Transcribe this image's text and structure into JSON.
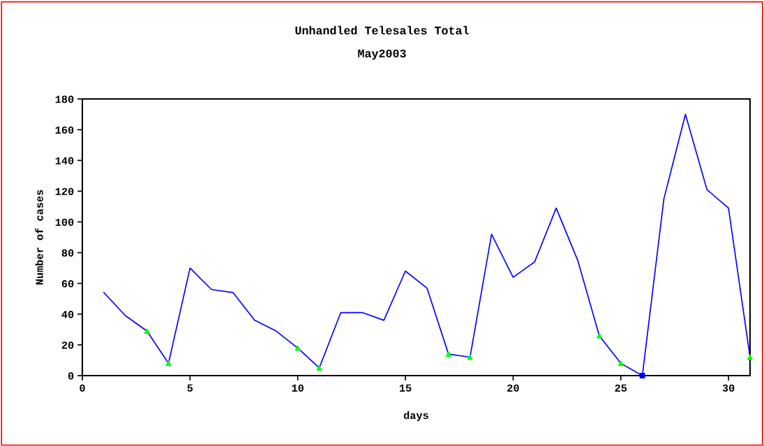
{
  "chart_data": {
    "type": "line",
    "title": "Unhandled Telesales Total",
    "subtitle": "May2003",
    "xlabel": "days",
    "ylabel": "Number of cases",
    "xlim": [
      0,
      31
    ],
    "xticks": [
      0,
      5,
      10,
      15,
      20,
      25,
      30
    ],
    "ylim": [
      0,
      180
    ],
    "yticks": [
      0,
      20,
      40,
      60,
      80,
      100,
      120,
      140,
      160,
      180
    ],
    "grid": false,
    "legend": false,
    "series": [
      {
        "color": "#0000ff",
        "marker": "none",
        "line_style": "solid",
        "x": [
          1,
          2,
          3,
          4,
          5,
          6,
          7,
          8,
          9,
          10,
          11,
          12,
          13,
          14,
          15,
          16,
          17,
          18,
          19,
          20,
          21,
          22,
          23,
          24,
          25,
          26,
          27,
          28,
          29,
          30,
          31
        ],
        "values": [
          54,
          39,
          29,
          8,
          70,
          56,
          54,
          36,
          29,
          18,
          5,
          41,
          41,
          36,
          68,
          57,
          14,
          12,
          92,
          64,
          74,
          109,
          75,
          26,
          8,
          0,
          115,
          170,
          121,
          109,
          12
        ]
      },
      {
        "type": "scatter",
        "color": "#00ff00",
        "marker": "triangle",
        "x": [
          3,
          4,
          10,
          11,
          17,
          18,
          24,
          25,
          31
        ],
        "values": [
          29,
          8,
          18,
          5,
          14,
          12,
          26,
          8,
          12
        ]
      },
      {
        "type": "scatter",
        "color": "#0000ff",
        "marker": "square",
        "x": [
          26
        ],
        "values": [
          0
        ]
      }
    ]
  }
}
